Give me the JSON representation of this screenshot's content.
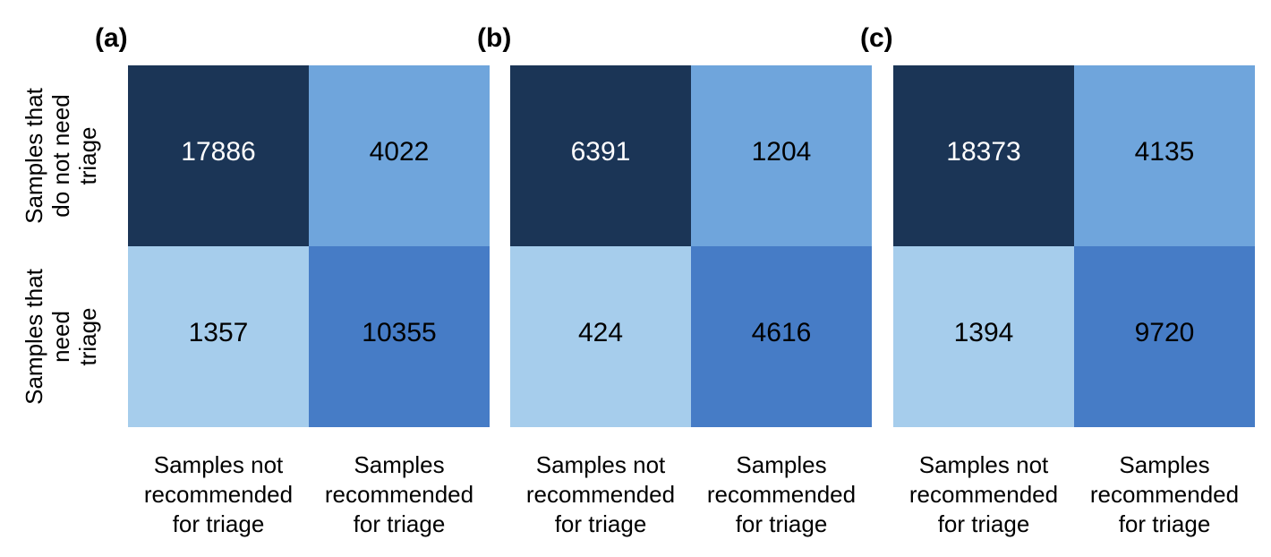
{
  "chart_data": [
    {
      "type": "heatmap",
      "panel_label": "(a)",
      "row_labels": [
        [
          "Samples that",
          "do not need",
          "triage"
        ],
        [
          "Samples that",
          "need",
          "triage"
        ]
      ],
      "col_labels": [
        [
          "Samples not",
          "recommended",
          "for triage"
        ],
        [
          "Samples",
          "recommended",
          "for triage"
        ]
      ],
      "values": [
        [
          17886,
          4022
        ],
        [
          1357,
          10355
        ]
      ],
      "cell_colors": [
        [
          "#1b3556",
          "#6fa5dc"
        ],
        [
          "#a6cdec",
          "#467cc6"
        ]
      ],
      "cell_text_colors": [
        [
          "#ffffff",
          "#000000"
        ],
        [
          "#000000",
          "#000000"
        ]
      ]
    },
    {
      "type": "heatmap",
      "panel_label": "(b)",
      "col_labels": [
        [
          "Samples not",
          "recommended",
          "for triage"
        ],
        [
          "Samples",
          "recommended",
          "for triage"
        ]
      ],
      "values": [
        [
          6391,
          1204
        ],
        [
          424,
          4616
        ]
      ],
      "cell_colors": [
        [
          "#1b3556",
          "#6fa5dc"
        ],
        [
          "#a6cdec",
          "#467cc6"
        ]
      ],
      "cell_text_colors": [
        [
          "#ffffff",
          "#000000"
        ],
        [
          "#000000",
          "#000000"
        ]
      ]
    },
    {
      "type": "heatmap",
      "panel_label": "(c)",
      "col_labels": [
        [
          "Samples not",
          "recommended",
          "for triage"
        ],
        [
          "Samples",
          "recommended",
          "for triage"
        ]
      ],
      "values": [
        [
          18373,
          4135
        ],
        [
          1394,
          9720
        ]
      ],
      "cell_colors": [
        [
          "#1b3556",
          "#6fa5dc"
        ],
        [
          "#a6cdec",
          "#467cc6"
        ]
      ],
      "cell_text_colors": [
        [
          "#ffffff",
          "#000000"
        ],
        [
          "#000000",
          "#000000"
        ]
      ]
    }
  ]
}
